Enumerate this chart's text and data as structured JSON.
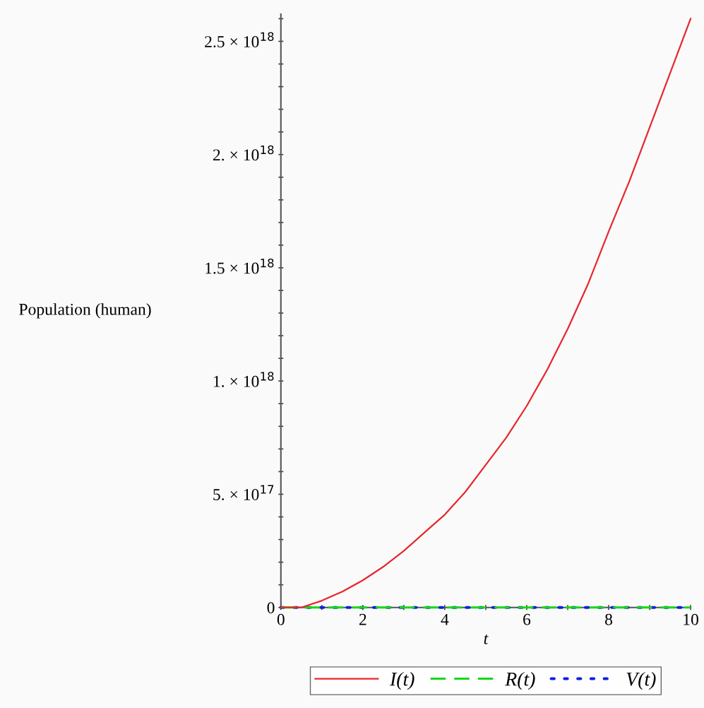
{
  "chart_data": {
    "type": "line",
    "xlabel": "t",
    "ylabel": "Population (human)",
    "xlim": [
      0,
      10
    ],
    "ylim": [
      0,
      2.62e+18
    ],
    "xticks": [
      0,
      {
        "value": 1,
        "label": null
      },
      2,
      {
        "value": 3,
        "label": null
      },
      4,
      {
        "value": 5,
        "label": null
      },
      6,
      {
        "value": 7,
        "label": null
      },
      8,
      {
        "value": 9,
        "label": null
      },
      10
    ],
    "yticks": [
      0,
      {
        "value": 1e+17,
        "label": null
      },
      {
        "value": 2e+17,
        "label": null
      },
      {
        "value": 3e+17,
        "label": null
      },
      {
        "value": 4e+17,
        "label": null
      },
      {
        "value": 5e+17,
        "label": "5. × 10$^{17}$"
      },
      {
        "value": 6e+17,
        "label": null
      },
      {
        "value": 7e+17,
        "label": null
      },
      {
        "value": 8e+17,
        "label": null
      },
      {
        "value": 9e+17,
        "label": null
      },
      {
        "value": 1e+18,
        "label": "1. × 10$^{18}$"
      },
      {
        "value": 1.1e+18,
        "label": null
      },
      {
        "value": 1.2e+18,
        "label": null
      },
      {
        "value": 1.3e+18,
        "label": null
      },
      {
        "value": 1.4e+18,
        "label": null
      },
      {
        "value": 1.5e+18,
        "label": "1.5 × 10$^{18}$"
      },
      {
        "value": 1.6e+18,
        "label": null
      },
      {
        "value": 1.7e+18,
        "label": null
      },
      {
        "value": 1.8e+18,
        "label": null
      },
      {
        "value": 1.9e+18,
        "label": null
      },
      {
        "value": 2e+18,
        "label": "2. × 10$^{18}$"
      },
      {
        "value": 2.1e+18,
        "label": null
      },
      {
        "value": 2.2e+18,
        "label": null
      },
      {
        "value": 2.3e+18,
        "label": null
      },
      {
        "value": 2.4e+18,
        "label": null
      },
      {
        "value": 2.5e+18,
        "label": "2.5 × 10$^{18}$"
      },
      {
        "value": 2.6e+18,
        "label": null
      }
    ],
    "x": [
      0,
      0.5,
      1,
      1.5,
      2,
      2.5,
      3,
      3.5,
      4,
      4.5,
      5,
      5.5,
      6,
      6.5,
      7,
      7.5,
      8,
      8.5,
      9,
      9.5,
      10
    ],
    "grid": false,
    "legend": "bottom",
    "series": [
      {
        "name": "I(t)",
        "color": "#e8262b",
        "line_style": "solid",
        "values": [
          0,
          0,
          3e+16,
          7e+16,
          1.2e+17,
          1.8e+17,
          2.5e+17,
          3.3e+17,
          4.1e+17,
          5.1e+17,
          6.3e+17,
          7.5e+17,
          8.9e+17,
          1.05e+18,
          1.23e+18,
          1.43e+18,
          1.66e+18,
          1.88e+18,
          2.12e+18,
          2.36e+18,
          2.6e+18
        ]
      },
      {
        "name": "R(t)",
        "color": "#16d916",
        "line_style": "dashed",
        "values": [
          0,
          0,
          0,
          0,
          0,
          0,
          0,
          0,
          0,
          0,
          0,
          0,
          0,
          0,
          0,
          0,
          0,
          0,
          0,
          0,
          0
        ]
      },
      {
        "name": "V(t)",
        "color": "#1020e0",
        "line_style": "dotted",
        "values": [
          0,
          0,
          0,
          0,
          0,
          0,
          0,
          0,
          0,
          0,
          0,
          0,
          0,
          0,
          0,
          0,
          0,
          0,
          0,
          0,
          0
        ]
      }
    ]
  }
}
